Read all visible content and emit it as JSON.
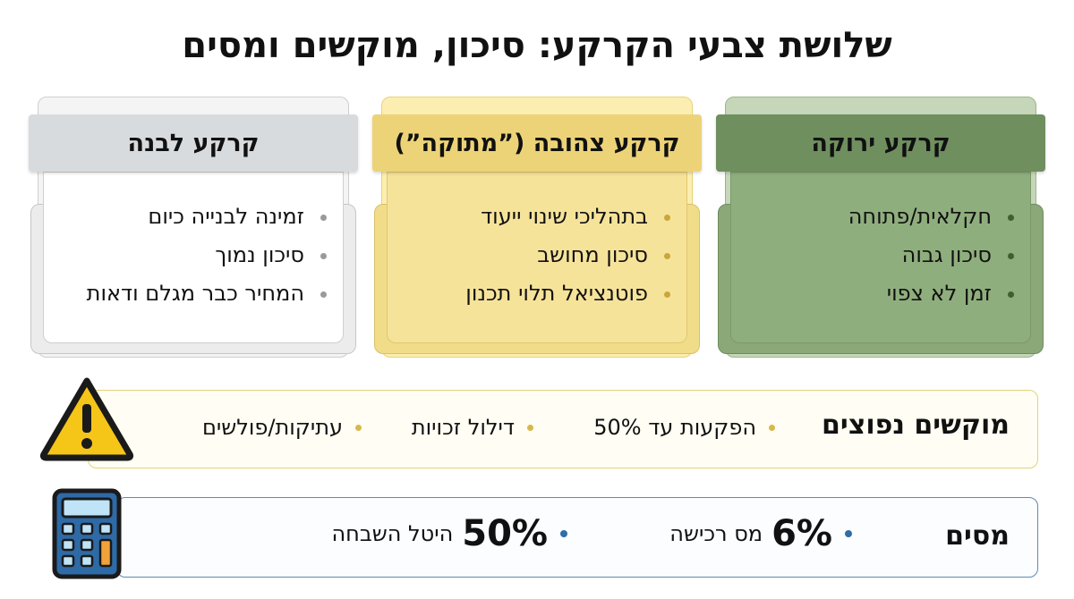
{
  "title": "שלושת צבעי הקרקע: סיכון, מוקשים ומסים",
  "cards": [
    {
      "name": "green",
      "title": "קרקע ירוקה",
      "items": [
        "חקלאית/פתוחה",
        "סיכון גבוה",
        "זמן לא צפוי"
      ]
    },
    {
      "name": "yellow",
      "title": "קרקע צהובה (”מתוקה”)",
      "items": [
        "בתהליכי שינוי ייעוד",
        "סיכון מחושב",
        "פוטנציאל תלוי תכנון"
      ]
    },
    {
      "name": "white",
      "title": "קרקע לבנה",
      "items": [
        "זמינה לבנייה כיום",
        "סיכון נמוך",
        "המחיר כבר מגלם ודאות"
      ]
    }
  ],
  "risks": {
    "label": "מוקשים נפוצים",
    "items": [
      "הפקעות עד 50%",
      "דילול זכויות",
      "עתיקות/פולשים"
    ]
  },
  "taxes": {
    "label": "מסים",
    "items": [
      {
        "value": "6%",
        "text": "מס רכישה"
      },
      {
        "value": "50%",
        "text": "היטל השבחה"
      }
    ]
  },
  "icons": {
    "warning": "warning-triangle-icon",
    "calculator": "calculator-icon"
  },
  "colors": {
    "green": "#6f8f5f",
    "yellow": "#ecd377",
    "white": "#d8dbde",
    "tax_blue": "#2f6da8"
  }
}
